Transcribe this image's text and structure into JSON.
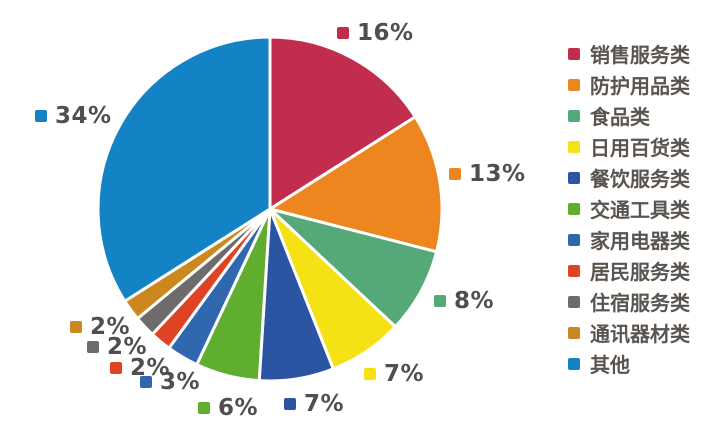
{
  "chart_data": {
    "type": "pie",
    "title": "",
    "legend_position": "right",
    "direction": "clockwise",
    "start_angle_deg": 0,
    "gap_color": "#ffffff",
    "series": [
      {
        "label": "销售服务类",
        "value": 16,
        "color": "#C22C4D"
      },
      {
        "label": "防护用品类",
        "value": 13,
        "color": "#EE861F"
      },
      {
        "label": "食品类",
        "value": 8,
        "color": "#55A978"
      },
      {
        "label": "日用百货类",
        "value": 7,
        "color": "#F4E214"
      },
      {
        "label": "餐饮服务类",
        "value": 7,
        "color": "#2B55A3"
      },
      {
        "label": "交通工具类",
        "value": 6,
        "color": "#5FAE30"
      },
      {
        "label": "家用电器类",
        "value": 3,
        "color": "#3068B0"
      },
      {
        "label": "居民服务类",
        "value": 2,
        "color": "#DE4423"
      },
      {
        "label": "住宿服务类",
        "value": 2,
        "color": "#6E6C6B"
      },
      {
        "label": "通讯器材类",
        "value": 2,
        "color": "#CC871F"
      },
      {
        "label": "其他",
        "value": 34,
        "color": "#1483C6"
      }
    ],
    "data_labels": [
      "16%",
      "13%",
      "8%",
      "7%",
      "7%",
      "6%",
      "3%",
      "2%",
      "2%",
      "2%",
      "34%"
    ],
    "legend_entries": [
      "销售服务类",
      "防护用品类",
      "食品类",
      "日用百货类",
      "餐饮服务类",
      "交通工具类",
      "家用电器类",
      "居民服务类",
      "住宿服务类",
      "通讯器材类",
      "其他"
    ]
  }
}
